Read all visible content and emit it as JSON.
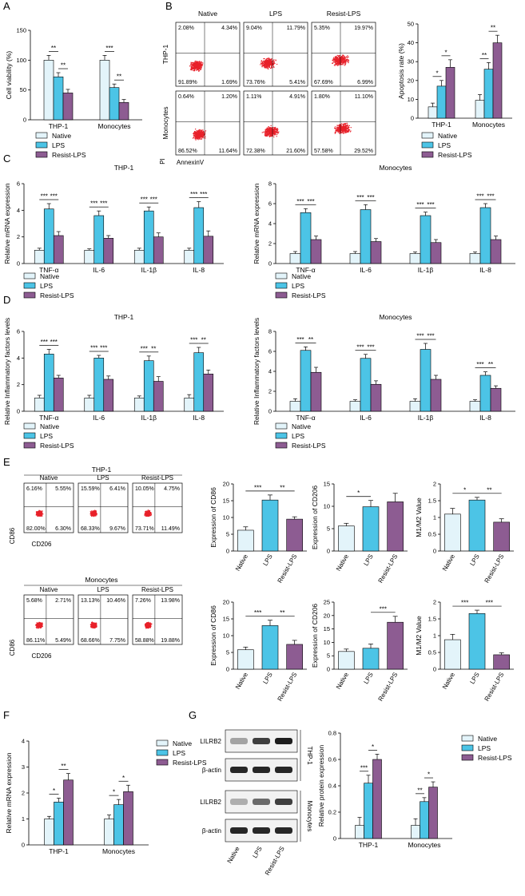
{
  "colors": {
    "native": "#e3f4fa",
    "lps": "#4cc4e6",
    "resist": "#8d5c92",
    "flow": "#e8212a"
  },
  "legend": [
    "Native",
    "LPS",
    "Resist-LPS"
  ],
  "panels": {
    "A": "A",
    "B": "B",
    "C": "C",
    "D": "D",
    "E": "E",
    "F": "F",
    "G": "G"
  },
  "panel_b": {
    "col_titles": [
      "Native",
      "LPS",
      "Resist-LPS"
    ],
    "row_labels": [
      "THP-1",
      "Monocytes"
    ],
    "x_axis_label": "AnnexinV",
    "y_axis_label": "PI",
    "quadrants": [
      [
        [
          "2.08%",
          "4.34%",
          "91.89%",
          "1.69%"
        ],
        [
          "9.04%",
          "11.79%",
          "73.76%",
          "5.41%"
        ],
        [
          "5.35%",
          "19.97%",
          "67.69%",
          "6.99%"
        ]
      ],
      [
        [
          "0.64%",
          "1.20%",
          "86.52%",
          "11.64%"
        ],
        [
          "1.11%",
          "4.91%",
          "72.38%",
          "21.60%"
        ],
        [
          "1.80%",
          "11.10%",
          "57.58%",
          "29.52%"
        ]
      ]
    ]
  },
  "panel_e": {
    "group_titles": [
      "THP-1",
      "Monocytes"
    ],
    "col_titles": [
      "Native",
      "LPS",
      "Resist-LPS"
    ],
    "x_axis_label": "CD206",
    "y_axis_label": "CD86",
    "quadrants": [
      [
        [
          "6.16%",
          "5.55%",
          "82.00%",
          "6.30%"
        ],
        [
          "15.59%",
          "6.41%",
          "68.33%",
          "9.67%"
        ],
        [
          "10.05%",
          "4.75%",
          "73.71%",
          "11.49%"
        ]
      ],
      [
        [
          "5.68%",
          "2.71%",
          "86.11%",
          "5.49%"
        ],
        [
          "13.13%",
          "10.46%",
          "68.66%",
          "7.75%"
        ],
        [
          "7.26%",
          "13.98%",
          "58.88%",
          "19.88%"
        ]
      ]
    ]
  },
  "panel_g": {
    "blot_labels": [
      "LILRB2",
      "β-actin",
      "LILRB2",
      "β-actin"
    ],
    "group_labels": [
      "THP-1",
      "Monocytes"
    ],
    "lanes": [
      "Native",
      "LPS",
      "Resist-LPS"
    ]
  },
  "chart_data": [
    {
      "id": "A",
      "type": "bar",
      "ylabel": "Cell viability (%)",
      "categories": [
        "THP-1",
        "Monocytes"
      ],
      "ylim": [
        0,
        150
      ],
      "yticks": [
        0,
        50,
        100,
        150
      ],
      "series": [
        {
          "name": "Native",
          "values": [
            100,
            100
          ],
          "errors": [
            8,
            8
          ]
        },
        {
          "name": "LPS",
          "values": [
            72,
            54
          ],
          "errors": [
            7,
            6
          ]
        },
        {
          "name": "Resist-LPS",
          "values": [
            45,
            29
          ],
          "errors": [
            6,
            5
          ]
        }
      ],
      "sig": [
        {
          "g": 0,
          "a": 0,
          "b": 1,
          "t": "**"
        },
        {
          "g": 0,
          "a": 1,
          "b": 2,
          "t": "**"
        },
        {
          "g": 1,
          "a": 0,
          "b": 1,
          "t": "***"
        },
        {
          "g": 1,
          "a": 1,
          "b": 2,
          "t": "**"
        }
      ]
    },
    {
      "id": "B",
      "type": "bar",
      "ylabel": "Apoptosis rate (%)",
      "categories": [
        "THP-1",
        "Monocytes"
      ],
      "ylim": [
        0,
        50
      ],
      "yticks": [
        0,
        10,
        20,
        30,
        40,
        50
      ],
      "series": [
        {
          "name": "Native",
          "values": [
            6,
            9.5
          ],
          "errors": [
            2,
            3
          ]
        },
        {
          "name": "LPS",
          "values": [
            17,
            26
          ],
          "errors": [
            3,
            3.5
          ]
        },
        {
          "name": "Resist-LPS",
          "values": [
            27,
            40
          ],
          "errors": [
            4,
            4
          ]
        }
      ],
      "sig": [
        {
          "g": 0,
          "a": 0,
          "b": 1,
          "t": "*"
        },
        {
          "g": 0,
          "a": 1,
          "b": 2,
          "t": "*"
        },
        {
          "g": 1,
          "a": 0,
          "b": 1,
          "t": "**"
        },
        {
          "g": 1,
          "a": 1,
          "b": 2,
          "t": "**"
        }
      ]
    },
    {
      "id": "C1",
      "type": "bar",
      "title": "THP-1",
      "ylabel": "Relative mRNA expression",
      "categories": [
        "TNF-α",
        "IL-6",
        "IL-1β",
        "IL-8"
      ],
      "ylim": [
        0,
        6
      ],
      "yticks": [
        0,
        2,
        4,
        6
      ],
      "series": [
        {
          "name": "Native",
          "values": [
            1,
            1,
            1,
            1
          ],
          "errors": [
            0.15,
            0.1,
            0.15,
            0.15
          ]
        },
        {
          "name": "LPS",
          "values": [
            4.1,
            3.6,
            3.95,
            4.2
          ],
          "errors": [
            0.4,
            0.35,
            0.3,
            0.45
          ]
        },
        {
          "name": "Resist-LPS",
          "values": [
            2.1,
            1.9,
            2.0,
            2.05
          ],
          "errors": [
            0.3,
            0.2,
            0.3,
            0.4
          ]
        }
      ],
      "sig": [
        {
          "g": 0,
          "a": 0,
          "b": 1,
          "t": "***"
        },
        {
          "g": 0,
          "a": 1,
          "b": 2,
          "t": "***"
        },
        {
          "g": 1,
          "a": 0,
          "b": 1,
          "t": "***"
        },
        {
          "g": 1,
          "a": 1,
          "b": 2,
          "t": "***"
        },
        {
          "g": 2,
          "a": 0,
          "b": 1,
          "t": "***"
        },
        {
          "g": 2,
          "a": 1,
          "b": 2,
          "t": "***"
        },
        {
          "g": 3,
          "a": 0,
          "b": 1,
          "t": "***"
        },
        {
          "g": 3,
          "a": 1,
          "b": 2,
          "t": "***"
        }
      ]
    },
    {
      "id": "C2",
      "type": "bar",
      "title": "Monocytes",
      "ylabel": "Relative mRNA expression",
      "categories": [
        "TNF-α",
        "IL-6",
        "IL-1β",
        "IL-8"
      ],
      "ylim": [
        0,
        8
      ],
      "yticks": [
        0,
        2,
        4,
        6,
        8
      ],
      "series": [
        {
          "name": "Native",
          "values": [
            1,
            1,
            1,
            1
          ],
          "errors": [
            0.2,
            0.2,
            0.15,
            0.15
          ]
        },
        {
          "name": "LPS",
          "values": [
            5.1,
            5.4,
            4.8,
            5.6
          ],
          "errors": [
            0.4,
            0.5,
            0.35,
            0.4
          ]
        },
        {
          "name": "Resist-LPS",
          "values": [
            2.4,
            2.2,
            2.1,
            2.4
          ],
          "errors": [
            0.35,
            0.3,
            0.3,
            0.35
          ]
        }
      ],
      "sig": [
        {
          "g": 0,
          "a": 0,
          "b": 1,
          "t": "***"
        },
        {
          "g": 0,
          "a": 1,
          "b": 2,
          "t": "***"
        },
        {
          "g": 1,
          "a": 0,
          "b": 1,
          "t": "***"
        },
        {
          "g": 1,
          "a": 1,
          "b": 2,
          "t": "***"
        },
        {
          "g": 2,
          "a": 0,
          "b": 1,
          "t": "***"
        },
        {
          "g": 2,
          "a": 1,
          "b": 2,
          "t": "***"
        },
        {
          "g": 3,
          "a": 0,
          "b": 1,
          "t": "***"
        },
        {
          "g": 3,
          "a": 1,
          "b": 2,
          "t": "***"
        }
      ]
    },
    {
      "id": "D1",
      "type": "bar",
      "title": "THP-1",
      "ylabel": "Relative Inflammatory factors levels",
      "categories": [
        "TNF-α",
        "IL-6",
        "IL-1β",
        "IL-8"
      ],
      "ylim": [
        0,
        6
      ],
      "yticks": [
        0,
        2,
        4,
        6
      ],
      "series": [
        {
          "name": "Native",
          "values": [
            1,
            1,
            1,
            1
          ],
          "errors": [
            0.2,
            0.2,
            0.15,
            0.25
          ]
        },
        {
          "name": "LPS",
          "values": [
            4.3,
            4.0,
            3.8,
            4.4
          ],
          "errors": [
            0.35,
            0.2,
            0.35,
            0.4
          ]
        },
        {
          "name": "Resist-LPS",
          "values": [
            2.5,
            2.4,
            2.25,
            2.8
          ],
          "errors": [
            0.2,
            0.25,
            0.35,
            0.3
          ]
        }
      ],
      "sig": [
        {
          "g": 0,
          "a": 0,
          "b": 1,
          "t": "***"
        },
        {
          "g": 0,
          "a": 1,
          "b": 2,
          "t": "***"
        },
        {
          "g": 1,
          "a": 0,
          "b": 1,
          "t": "***"
        },
        {
          "g": 1,
          "a": 1,
          "b": 2,
          "t": "***"
        },
        {
          "g": 2,
          "a": 0,
          "b": 1,
          "t": "***"
        },
        {
          "g": 2,
          "a": 1,
          "b": 2,
          "t": "**"
        },
        {
          "g": 3,
          "a": 0,
          "b": 1,
          "t": "***"
        },
        {
          "g": 3,
          "a": 1,
          "b": 2,
          "t": "**"
        }
      ]
    },
    {
      "id": "D2",
      "type": "bar",
      "title": "Monocytes",
      "ylabel": "Relative Inflammatory factors levels",
      "categories": [
        "TNF-α",
        "IL-6",
        "IL-1β",
        "IL-8"
      ],
      "ylim": [
        0,
        8
      ],
      "yticks": [
        0,
        2,
        4,
        6,
        8
      ],
      "series": [
        {
          "name": "Native",
          "values": [
            1,
            1,
            1,
            1
          ],
          "errors": [
            0.25,
            0.15,
            0.25,
            0.15
          ]
        },
        {
          "name": "LPS",
          "values": [
            6.1,
            5.3,
            6.2,
            3.6
          ],
          "errors": [
            0.35,
            0.4,
            0.6,
            0.35
          ]
        },
        {
          "name": "Resist-LPS",
          "values": [
            3.9,
            2.7,
            3.2,
            2.3
          ],
          "errors": [
            0.5,
            0.35,
            0.4,
            0.25
          ]
        }
      ],
      "sig": [
        {
          "g": 0,
          "a": 0,
          "b": 1,
          "t": "***"
        },
        {
          "g": 0,
          "a": 1,
          "b": 2,
          "t": "**"
        },
        {
          "g": 1,
          "a": 0,
          "b": 1,
          "t": "***"
        },
        {
          "g": 1,
          "a": 1,
          "b": 2,
          "t": "***"
        },
        {
          "g": 2,
          "a": 0,
          "b": 1,
          "t": "***"
        },
        {
          "g": 2,
          "a": 1,
          "b": 2,
          "t": "***"
        },
        {
          "g": 3,
          "a": 0,
          "b": 1,
          "t": "***"
        },
        {
          "g": 3,
          "a": 1,
          "b": 2,
          "t": "**"
        }
      ]
    },
    {
      "id": "E1",
      "type": "bar",
      "ylabel": "Expression of CD86",
      "categories": [
        "Native",
        "LPS",
        "Resist-LPS"
      ],
      "ylim": [
        0,
        20
      ],
      "yticks": [
        0,
        5,
        10,
        15,
        20
      ],
      "values": [
        6.2,
        15.2,
        9.5
      ],
      "errors": [
        1,
        1.5,
        0.7
      ],
      "sig": [
        {
          "a": 0,
          "b": 1,
          "t": "***"
        },
        {
          "a": 1,
          "b": 2,
          "t": "**"
        }
      ]
    },
    {
      "id": "E2",
      "type": "bar",
      "ylabel": "Expression of CD206",
      "categories": [
        "Native",
        "LPS",
        "Resist-LPS"
      ],
      "ylim": [
        0,
        15
      ],
      "yticks": [
        0,
        5,
        10,
        15
      ],
      "values": [
        5.6,
        9.9,
        11.0
      ],
      "errors": [
        0.6,
        1.4,
        1.9
      ],
      "sig": [
        {
          "a": 0,
          "b": 1,
          "t": "*"
        }
      ]
    },
    {
      "id": "E3",
      "type": "bar",
      "ylabel": "M1/M2 Value",
      "categories": [
        "Native",
        "LPS",
        "Resist-LPS"
      ],
      "ylim": [
        0,
        2.0
      ],
      "yticks": [
        0,
        0.5,
        1.0,
        1.5,
        2.0
      ],
      "values": [
        1.1,
        1.52,
        0.86
      ],
      "errors": [
        0.17,
        0.08,
        0.1
      ],
      "sig": [
        {
          "a": 0,
          "b": 1,
          "t": "*"
        },
        {
          "a": 1,
          "b": 2,
          "t": "**"
        }
      ]
    },
    {
      "id": "E4",
      "type": "bar",
      "ylabel": "Expression of CD86",
      "categories": [
        "Native",
        "LPS",
        "Resist-LPS"
      ],
      "ylim": [
        0,
        20
      ],
      "yticks": [
        0,
        5,
        10,
        15,
        20
      ],
      "values": [
        5.8,
        13.0,
        7.4
      ],
      "errors": [
        0.8,
        1.6,
        1.2
      ],
      "sig": [
        {
          "a": 0,
          "b": 1,
          "t": "***"
        },
        {
          "a": 1,
          "b": 2,
          "t": "**"
        }
      ]
    },
    {
      "id": "E5",
      "type": "bar",
      "ylabel": "Expression of CD206",
      "categories": [
        "Native",
        "LPS",
        "Resist-LPS"
      ],
      "ylim": [
        0,
        25
      ],
      "yticks": [
        0,
        5,
        10,
        15,
        20,
        25
      ],
      "values": [
        6.6,
        7.8,
        17.5
      ],
      "errors": [
        0.9,
        1.6,
        2.2
      ],
      "sig": [
        {
          "a": 1,
          "b": 2,
          "t": "***"
        }
      ]
    },
    {
      "id": "E6",
      "type": "bar",
      "ylabel": "M1/M2 Value",
      "categories": [
        "Native",
        "LPS",
        "Resist-LPS"
      ],
      "ylim": [
        0,
        2.0
      ],
      "yticks": [
        0,
        0.5,
        1.0,
        1.5,
        2.0
      ],
      "values": [
        0.88,
        1.66,
        0.43
      ],
      "errors": [
        0.16,
        0.1,
        0.06
      ],
      "sig": [
        {
          "a": 0,
          "b": 1,
          "t": "***"
        },
        {
          "a": 1,
          "b": 2,
          "t": "***"
        }
      ]
    },
    {
      "id": "F",
      "type": "bar",
      "ylabel": "Relative mRNA expression",
      "categories": [
        "THP-1",
        "Monocytes"
      ],
      "ylim": [
        0,
        4
      ],
      "yticks": [
        0,
        1,
        2,
        3,
        4
      ],
      "series": [
        {
          "name": "Native",
          "values": [
            1,
            1
          ],
          "errors": [
            0.1,
            0.15
          ]
        },
        {
          "name": "LPS",
          "values": [
            1.65,
            1.55
          ],
          "errors": [
            0.15,
            0.2
          ]
        },
        {
          "name": "Resist-LPS",
          "values": [
            2.5,
            2.05
          ],
          "errors": [
            0.25,
            0.25
          ]
        }
      ],
      "sig": [
        {
          "g": 0,
          "a": 0,
          "b": 1,
          "t": "*"
        },
        {
          "g": 0,
          "a": 1,
          "b": 2,
          "t": "**"
        },
        {
          "g": 1,
          "a": 0,
          "b": 1,
          "t": "*"
        },
        {
          "g": 1,
          "a": 1,
          "b": 2,
          "t": "*"
        }
      ]
    },
    {
      "id": "G",
      "type": "bar",
      "ylabel": "Relative protein expression",
      "categories": [
        "THP-1",
        "Monocytes"
      ],
      "ylim": [
        0,
        0.8
      ],
      "yticks": [
        0,
        0.2,
        0.4,
        0.6,
        0.8
      ],
      "series": [
        {
          "name": "Native",
          "values": [
            0.1,
            0.1
          ],
          "errors": [
            0.06,
            0.05
          ]
        },
        {
          "name": "LPS",
          "values": [
            0.42,
            0.28
          ],
          "errors": [
            0.06,
            0.03
          ]
        },
        {
          "name": "Resist-LPS",
          "values": [
            0.6,
            0.39
          ],
          "errors": [
            0.04,
            0.04
          ]
        }
      ],
      "sig": [
        {
          "g": 0,
          "a": 0,
          "b": 1,
          "t": "***"
        },
        {
          "g": 0,
          "a": 1,
          "b": 2,
          "t": "*"
        },
        {
          "g": 1,
          "a": 0,
          "b": 1,
          "t": "**"
        },
        {
          "g": 1,
          "a": 1,
          "b": 2,
          "t": "*"
        }
      ]
    }
  ]
}
